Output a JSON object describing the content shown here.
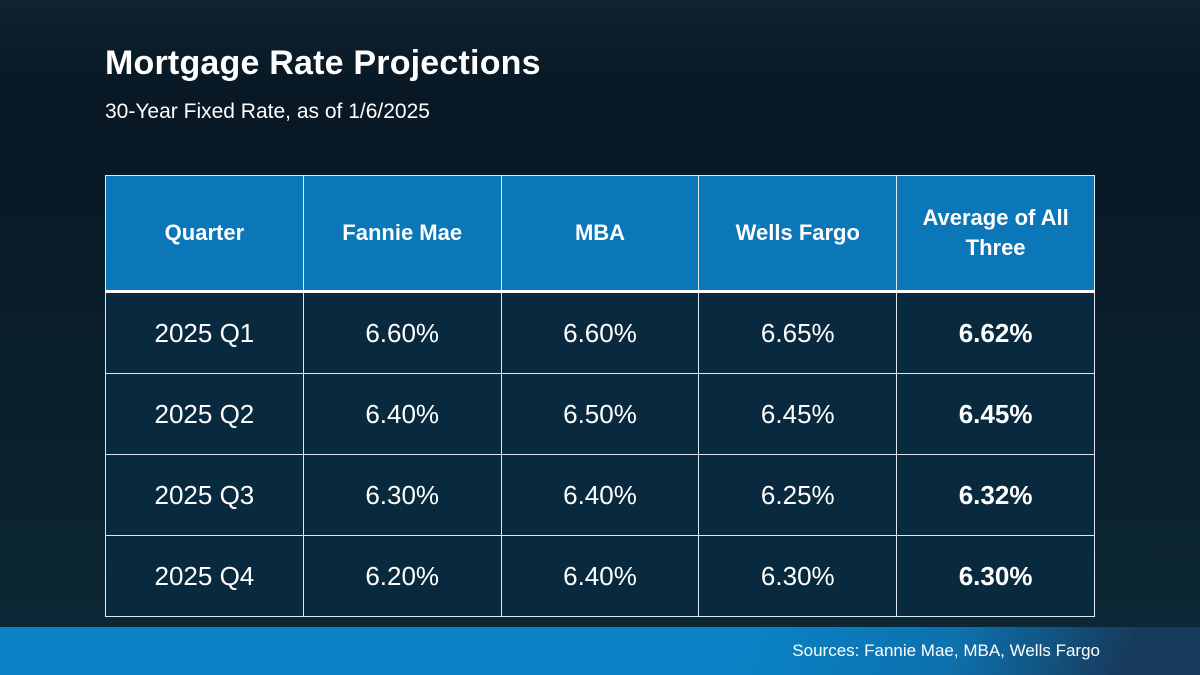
{
  "header": {
    "title": "Mortgage Rate Projections",
    "subtitle": "30-Year Fixed Rate, as of 1/6/2025"
  },
  "chart_data": {
    "type": "table",
    "title": "Mortgage Rate Projections",
    "subtitle": "30-Year Fixed Rate, as of 1/6/2025",
    "columns": [
      "Quarter",
      "Fannie Mae",
      "MBA",
      "Wells Fargo",
      "Average of All Three"
    ],
    "rows": [
      [
        "2025 Q1",
        "6.60%",
        "6.60%",
        "6.65%",
        "6.62%"
      ],
      [
        "2025 Q2",
        "6.40%",
        "6.50%",
        "6.45%",
        "6.45%"
      ],
      [
        "2025 Q3",
        "6.30%",
        "6.40%",
        "6.25%",
        "6.32%"
      ],
      [
        "2025 Q4",
        "6.20%",
        "6.40%",
        "6.30%",
        "6.30%"
      ]
    ],
    "layout_hints": {
      "last_column_bold": true,
      "header_fill": "#0b76b8",
      "cell_fill": "#092a3e",
      "grid": "on"
    }
  },
  "footer": {
    "sources": "Sources: Fannie Mae, MBA, Wells Fargo"
  },
  "colors": {
    "background_navy": "#0a1c29",
    "header_blue": "#0b76b8",
    "cell_navy": "#092a3e",
    "grid_line": "#dfe8ee",
    "footer_blue_left": "#0a82c5",
    "footer_navy_right": "#17395a",
    "text": "#ffffff"
  }
}
